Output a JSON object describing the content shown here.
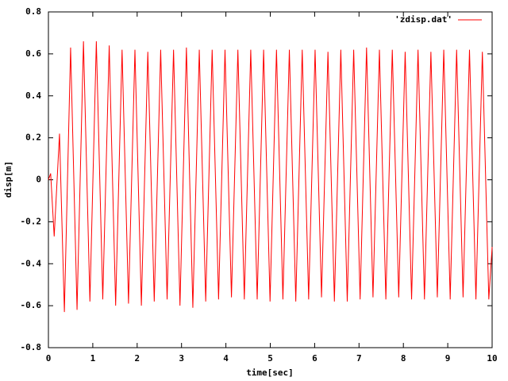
{
  "chart_data": {
    "type": "line",
    "x_label": "time[sec]",
    "y_label": "disp[m]",
    "xlim": [
      0,
      10
    ],
    "xticks": [
      0,
      1,
      2,
      3,
      4,
      5,
      6,
      7,
      8,
      9,
      10
    ],
    "ylim": [
      -0.8,
      0.8
    ],
    "yticks": [
      -0.8,
      -0.6,
      -0.4,
      -0.2,
      0,
      0.2,
      0.4,
      0.6,
      0.8
    ],
    "grid": false,
    "legend": "top-right",
    "x": [
      0,
      0.05,
      0.13,
      0.25,
      0.36,
      0.5,
      0.645,
      0.79,
      0.935,
      1.08,
      1.225,
      1.37,
      1.515,
      1.66,
      1.805,
      1.95,
      2.095,
      2.24,
      2.385,
      2.53,
      2.675,
      2.82,
      2.965,
      3.11,
      3.255,
      3.4,
      3.545,
      3.69,
      3.835,
      3.98,
      4.125,
      4.27,
      4.415,
      4.56,
      4.705,
      4.85,
      4.995,
      5.14,
      5.285,
      5.43,
      5.575,
      5.72,
      5.865,
      6.01,
      6.155,
      6.3,
      6.445,
      6.59,
      6.735,
      6.88,
      7.025,
      7.17,
      7.315,
      7.46,
      7.605,
      7.75,
      7.895,
      8.04,
      8.185,
      8.33,
      8.475,
      8.62,
      8.765,
      8.91,
      9.055,
      9.2,
      9.345,
      9.49,
      9.635,
      9.78,
      9.925,
      10
    ],
    "series": [
      {
        "name": "'zdisp.dat'",
        "color": "#ff0000",
        "values": [
          0,
          0.03,
          -0.27,
          0.22,
          -0.63,
          0.63,
          -0.62,
          0.66,
          -0.58,
          0.66,
          -0.57,
          0.64,
          -0.6,
          0.62,
          -0.59,
          0.62,
          -0.6,
          0.61,
          -0.58,
          0.62,
          -0.57,
          0.62,
          -0.6,
          0.63,
          -0.61,
          0.62,
          -0.58,
          0.62,
          -0.57,
          0.62,
          -0.56,
          0.62,
          -0.57,
          0.62,
          -0.57,
          0.62,
          -0.58,
          0.62,
          -0.57,
          0.62,
          -0.58,
          0.62,
          -0.57,
          0.62,
          -0.56,
          0.61,
          -0.58,
          0.62,
          -0.58,
          0.62,
          -0.57,
          0.63,
          -0.56,
          0.62,
          -0.57,
          0.62,
          -0.56,
          0.61,
          -0.57,
          0.62,
          -0.57,
          0.61,
          -0.56,
          0.62,
          -0.57,
          0.62,
          -0.56,
          0.62,
          -0.57,
          0.61,
          -0.57,
          -0.32
        ]
      }
    ]
  }
}
